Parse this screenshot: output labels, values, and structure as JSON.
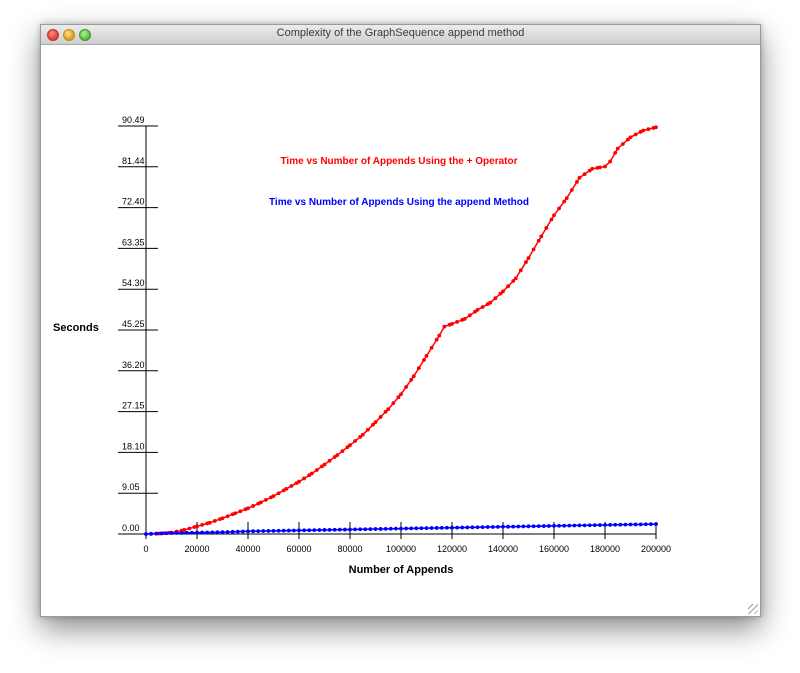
{
  "window": {
    "title": "Complexity of the GraphSequence append method"
  },
  "chart_data": {
    "type": "scatter",
    "title": "",
    "xlabel": "Number of Appends",
    "ylabel": "Seconds",
    "xlim": [
      0,
      200000
    ],
    "ylim": [
      0,
      90.49
    ],
    "x_ticks": [
      "0",
      "20000",
      "40000",
      "60000",
      "80000",
      "100000",
      "120000",
      "140000",
      "160000",
      "180000",
      "200000"
    ],
    "y_ticks": [
      "0.00",
      "9.05",
      "18.10",
      "27.15",
      "36.20",
      "45.25",
      "54.30",
      "63.35",
      "72.40",
      "81.44",
      "90.49"
    ],
    "grid": false,
    "legend_position": "top-center",
    "series": [
      {
        "name": "Time vs Number of Appends Using the + Operator",
        "color": "#ff0000",
        "x": [
          0,
          5000,
          10000,
          15000,
          20000,
          25000,
          30000,
          35000,
          40000,
          45000,
          50000,
          55000,
          60000,
          65000,
          70000,
          75000,
          80000,
          85000,
          90000,
          95000,
          100000,
          105000,
          110000,
          115000,
          117000,
          120000,
          125000,
          130000,
          135000,
          140000,
          145000,
          150000,
          155000,
          160000,
          165000,
          170000,
          175000,
          178000,
          180000,
          182000,
          185000,
          190000,
          195000,
          200000
        ],
        "y": [
          0.0,
          0.1,
          0.3,
          0.9,
          1.7,
          2.5,
          3.5,
          4.6,
          5.7,
          7.0,
          8.4,
          10.0,
          11.6,
          13.4,
          15.4,
          17.5,
          19.7,
          22.0,
          24.8,
          27.7,
          31.0,
          35.0,
          39.5,
          44.0,
          46.0,
          46.6,
          47.7,
          49.7,
          51.3,
          53.8,
          56.7,
          61.2,
          66.0,
          70.7,
          74.5,
          79.0,
          81.0,
          81.3,
          81.5,
          82.6,
          85.5,
          88.0,
          89.5,
          90.2
        ]
      },
      {
        "name": "Time vs Number of Appends Using the append Method",
        "color": "#0000ff",
        "x": [
          0,
          10000,
          20000,
          30000,
          40000,
          50000,
          60000,
          70000,
          80000,
          90000,
          100000,
          110000,
          120000,
          130000,
          140000,
          150000,
          160000,
          170000,
          180000,
          190000,
          200000
        ],
        "y": [
          0.0,
          0.2,
          0.3,
          0.4,
          0.6,
          0.7,
          0.8,
          0.9,
          1.0,
          1.1,
          1.2,
          1.3,
          1.4,
          1.5,
          1.6,
          1.7,
          1.8,
          1.9,
          2.0,
          2.1,
          2.2
        ]
      }
    ]
  }
}
